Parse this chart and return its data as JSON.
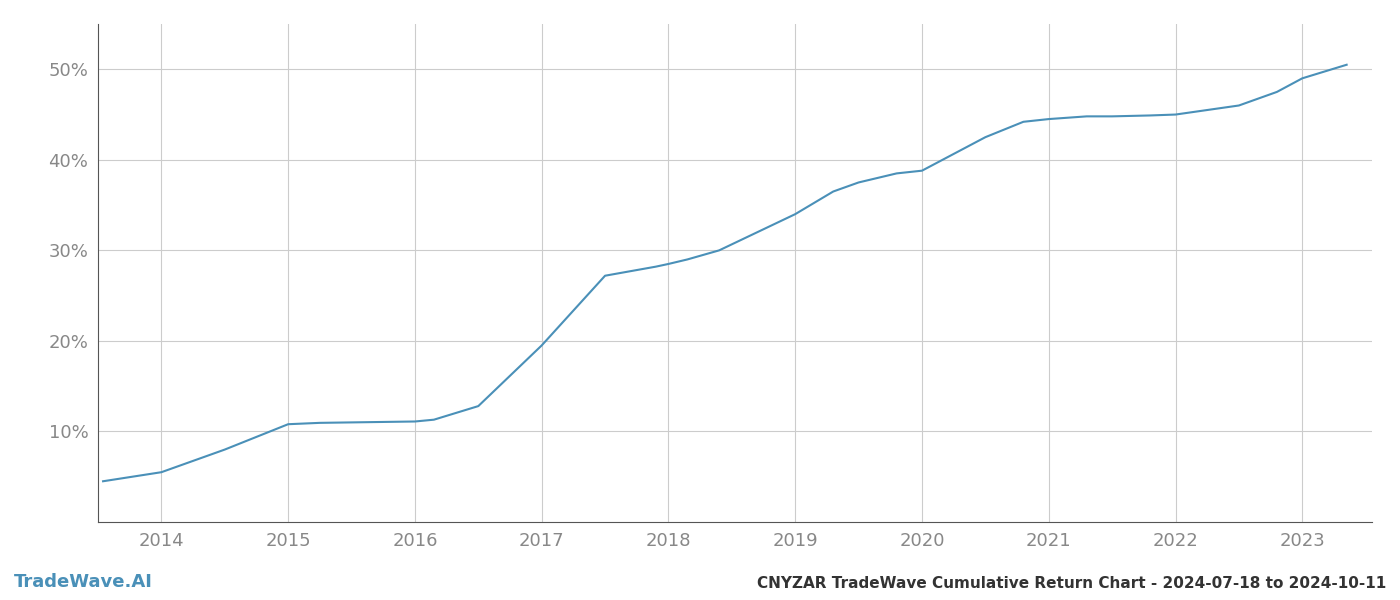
{
  "title": "CNYZAR TradeWave Cumulative Return Chart - 2024-07-18 to 2024-10-11",
  "watermark": "TradeWave.AI",
  "line_color": "#4a90b8",
  "background_color": "#ffffff",
  "grid_color": "#cccccc",
  "axis_color": "#555555",
  "tick_color": "#888888",
  "x_years": [
    2013.54,
    2014.0,
    2014.5,
    2015.0,
    2015.25,
    2015.5,
    2016.0,
    2016.15,
    2016.5,
    2017.0,
    2017.5,
    2017.9,
    2018.0,
    2018.15,
    2018.4,
    2019.0,
    2019.3,
    2019.5,
    2019.8,
    2020.0,
    2020.5,
    2020.8,
    2021.0,
    2021.3,
    2021.5,
    2021.8,
    2022.0,
    2022.5,
    2022.8,
    2023.0,
    2023.35
  ],
  "y_values": [
    4.5,
    5.5,
    8.0,
    10.8,
    10.95,
    11.0,
    11.1,
    11.3,
    12.8,
    19.5,
    27.2,
    28.2,
    28.5,
    29.0,
    30.0,
    34.0,
    36.5,
    37.5,
    38.5,
    38.8,
    42.5,
    44.2,
    44.5,
    44.8,
    44.8,
    44.9,
    45.0,
    46.0,
    47.5,
    49.0,
    50.5
  ],
  "xlim": [
    2013.5,
    2023.55
  ],
  "ylim": [
    0,
    55
  ],
  "yticks": [
    10,
    20,
    30,
    40,
    50
  ],
  "xticks": [
    2014,
    2015,
    2016,
    2017,
    2018,
    2019,
    2020,
    2021,
    2022,
    2023
  ],
  "line_width": 1.5,
  "title_fontsize": 11,
  "tick_fontsize": 13,
  "watermark_fontsize": 13
}
